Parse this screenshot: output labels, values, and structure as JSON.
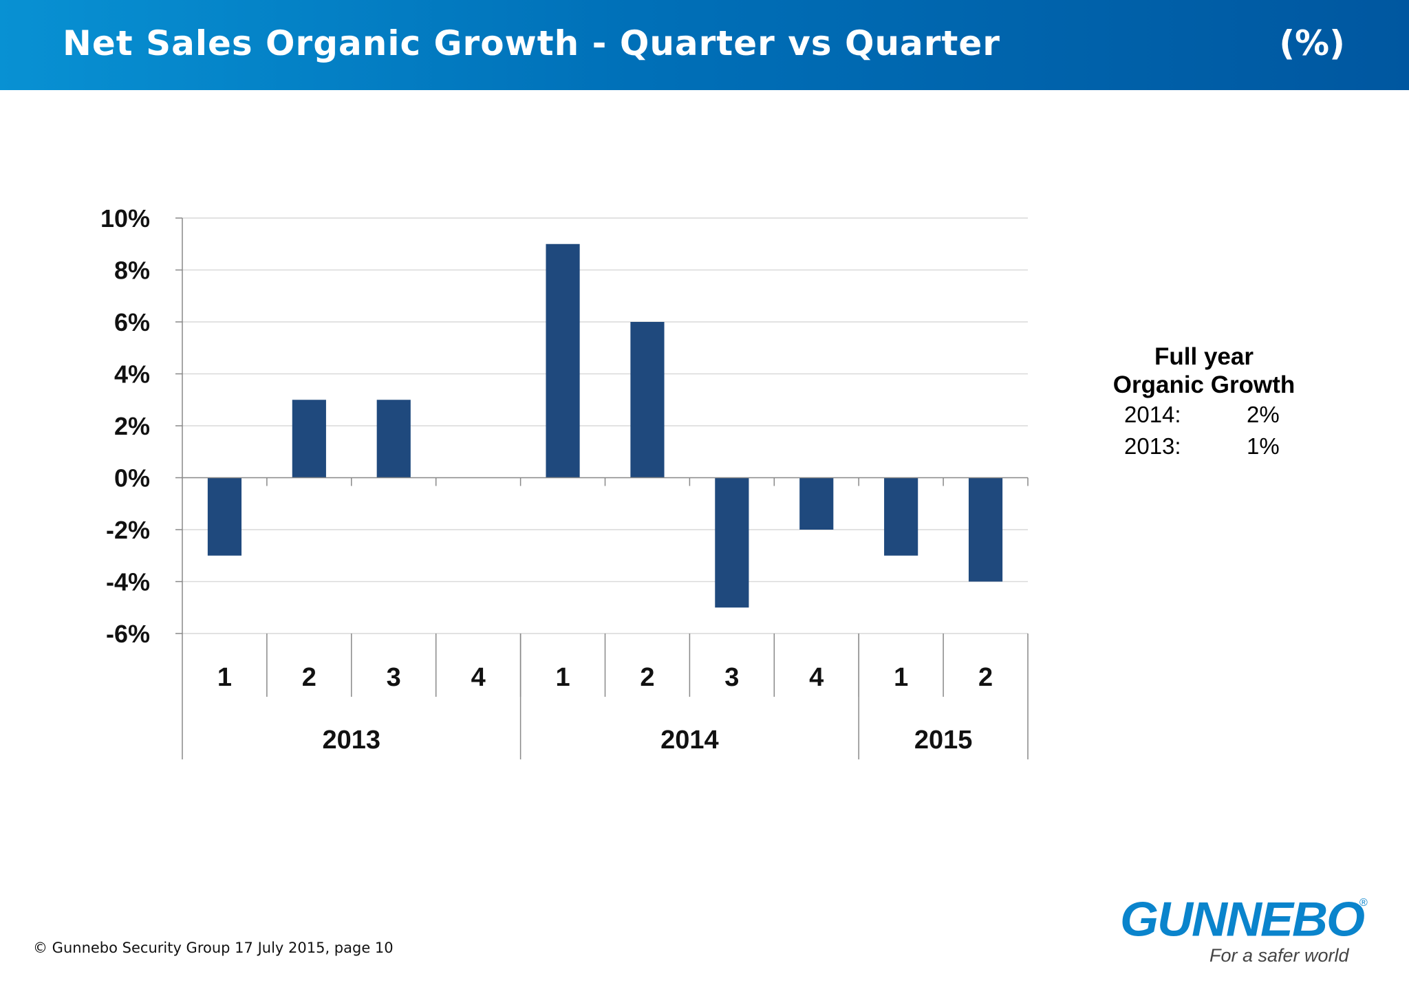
{
  "header": {
    "title": "Net Sales Organic Growth - Quarter vs Quarter",
    "unit": "(%)"
  },
  "chart_data": {
    "type": "bar",
    "title": "",
    "xlabel": "",
    "ylabel": "",
    "categories": [
      "1",
      "2",
      "3",
      "4",
      "1",
      "2",
      "3",
      "4",
      "1",
      "2"
    ],
    "groups": [
      {
        "label": "2013",
        "count": 4
      },
      {
        "label": "2014",
        "count": 4
      },
      {
        "label": "2015",
        "count": 2
      }
    ],
    "values": [
      -3,
      3,
      3,
      0,
      9,
      6,
      -5,
      -2,
      -3,
      -4
    ],
    "value_unit": "%",
    "ylim": [
      -6,
      10
    ],
    "yticks": [
      10,
      8,
      6,
      4,
      2,
      0,
      -2,
      -4,
      -6
    ],
    "ytick_labels": [
      "10%",
      "8%",
      "6%",
      "4%",
      "2%",
      "0%",
      "-2%",
      "-4%",
      "-6%"
    ],
    "grid": true,
    "legend": "none",
    "bar_color": "#1f497d"
  },
  "sidebar": {
    "heading_line1": "Full year",
    "heading_line2": "Organic Growth",
    "rows": [
      {
        "year": "2014:",
        "value": "2%"
      },
      {
        "year": "2013:",
        "value": "1%"
      }
    ]
  },
  "footer": {
    "text": "© Gunnebo Security Group 17 July 2015, page 10"
  },
  "logo": {
    "name": "GUNNEBO",
    "registered": "®",
    "tagline": "For a safer world"
  },
  "colors": {
    "header_start": "#0891d3",
    "header_end": "#0057a0",
    "bar": "#1f497d",
    "logo": "#0a84cc"
  }
}
